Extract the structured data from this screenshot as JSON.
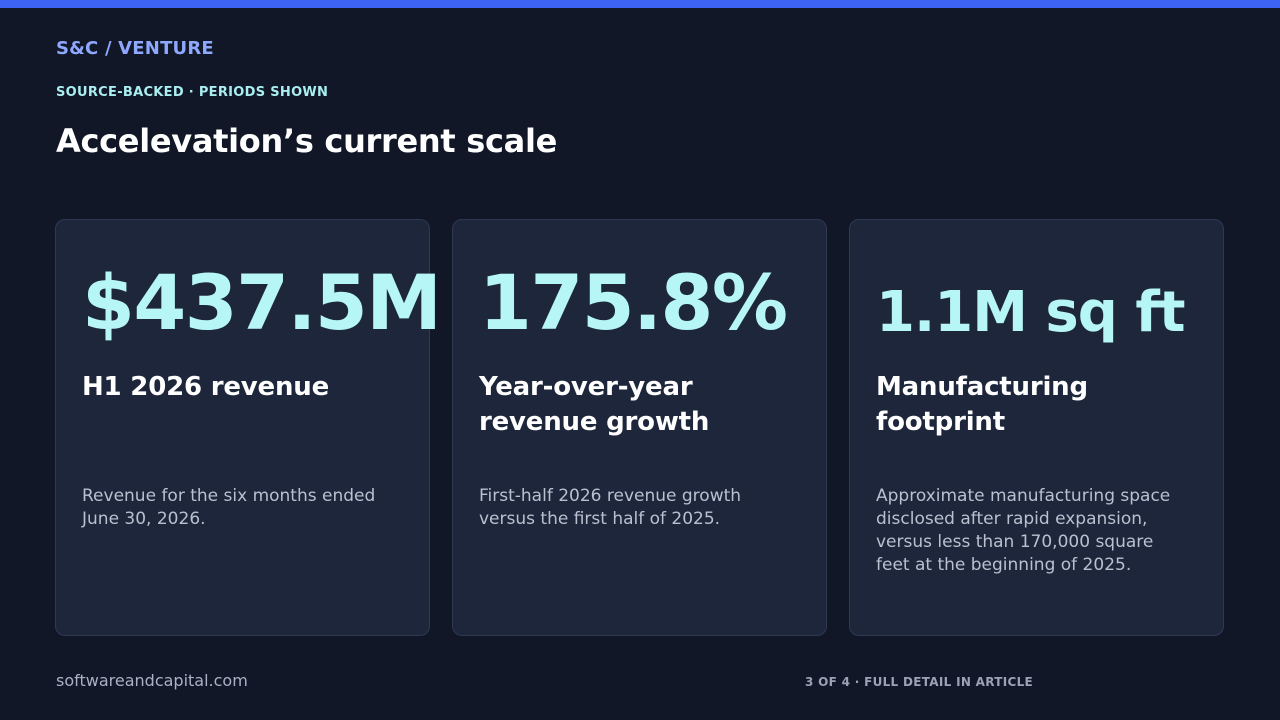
{
  "header": {
    "brand": "S&C / VENTURE",
    "eyebrow": "SOURCE-BACKED · PERIODS SHOWN",
    "title": "Accelevation’s current scale"
  },
  "cards": [
    {
      "metric": "$437.5M",
      "title": "H1 2026 revenue",
      "description": "Revenue for the six months ended June 30, 2026."
    },
    {
      "metric": "175.8%",
      "title": "Year-over-year revenue growth",
      "description": "First-half 2026 revenue growth versus the first half of 2025."
    },
    {
      "metric": "1.1M sq ft",
      "title": "Manufacturing footprint",
      "description": "Approximate manufacturing space disclosed after rapid expansion, versus less than 170,000 square feet at the beginning of 2025."
    }
  ],
  "footer": {
    "site": "softwareandcapital.com",
    "page_indicator": "3 OF 4 · FULL DETAIL IN ARTICLE"
  },
  "colors": {
    "accent_bar": "#3d63f5",
    "background": "#111726",
    "card": "#1d263a",
    "metric": "#b6f6f6"
  }
}
